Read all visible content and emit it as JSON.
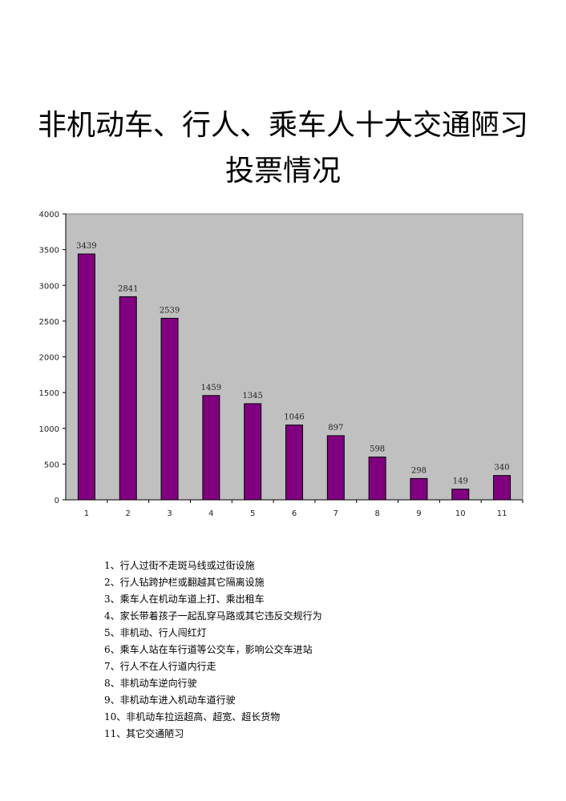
{
  "title": {
    "line1": "非机动车、行人、乘车人十大交通陋习",
    "line2": "投票情况"
  },
  "colors": {
    "bar": "#800080",
    "plot_background": "#c0c0c0",
    "axis": "#000000"
  },
  "chart_data": {
    "type": "bar",
    "categories": [
      "1",
      "2",
      "3",
      "4",
      "5",
      "6",
      "7",
      "8",
      "9",
      "10",
      "11"
    ],
    "values": [
      3439,
      2841,
      2539,
      1459,
      1345,
      1046,
      897,
      598,
      298,
      149,
      340
    ],
    "ylim": [
      0,
      4000
    ],
    "yticks": [
      "0",
      "500",
      "1000",
      "1500",
      "2000",
      "2500",
      "3000",
      "3500",
      "4000"
    ],
    "grid": false,
    "data_labels": true
  },
  "legend_items": [
    "1、行人过街不走斑马线或过街设施",
    "2、行人钻跨护栏或翻越其它隔离设施",
    "3、乘车人在机动车道上打、乘出租车",
    "4、家长带着孩子一起乱穿马路或其它违反交规行为",
    "5、非机动、行人闯红灯",
    "6、乘车人站在车行道等公交车，影响公交车进站",
    "7、行人不在人行道内行走",
    "8、非机动车逆向行驶",
    "9、非机动车进入机动车道行驶",
    "10、非机动车拉运超高、超宽、超长货物",
    "11、其它交通陋习"
  ]
}
